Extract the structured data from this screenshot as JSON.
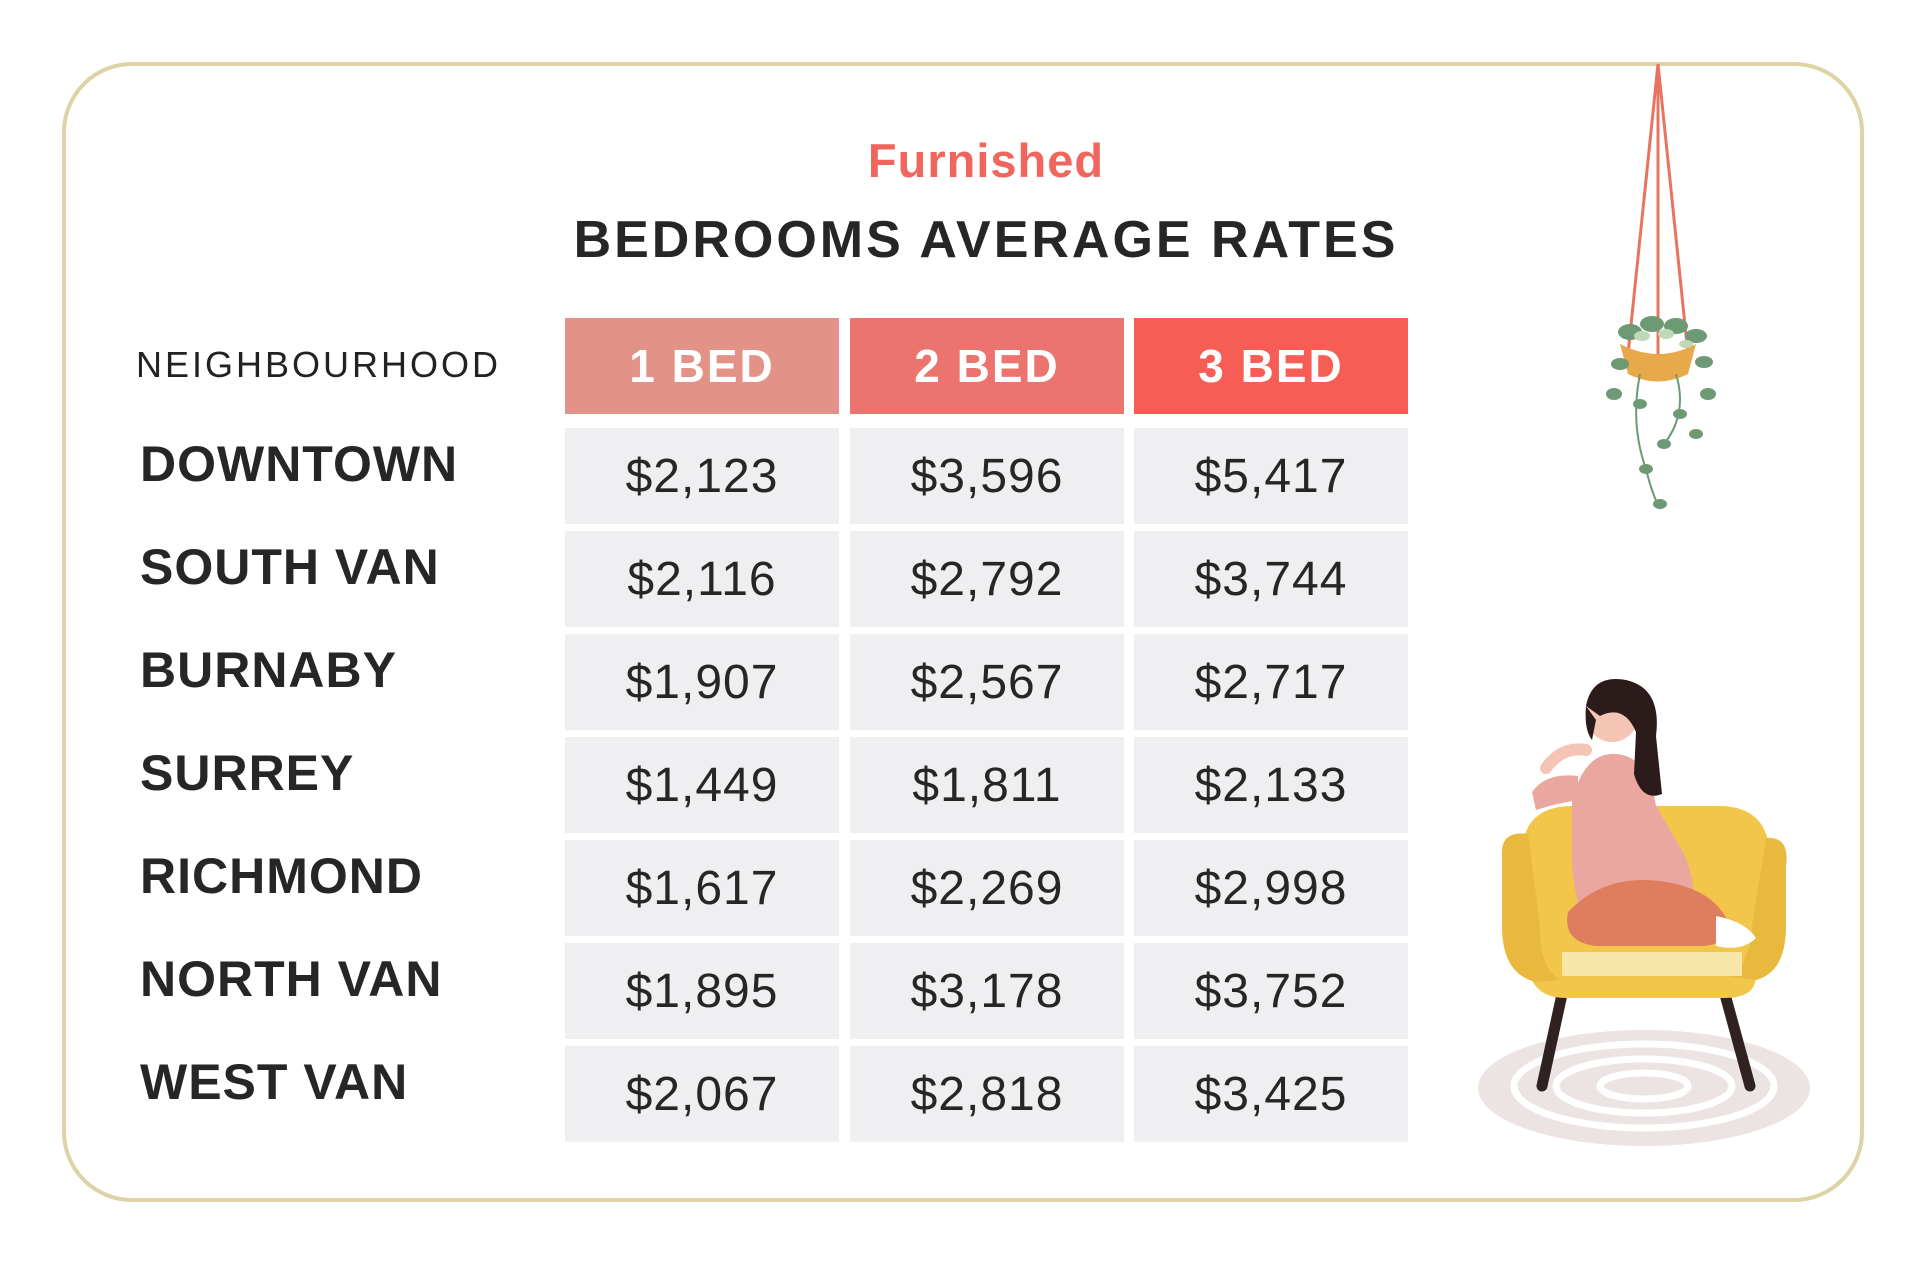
{
  "chart_data": {
    "type": "table",
    "subtitle": "Furnished",
    "title": "BEDROOMS AVERAGE RATES",
    "row_header": "NEIGHBOURHOOD",
    "columns": [
      "1 BED",
      "2 BED",
      "3 BED"
    ],
    "column_colors": [
      "#e39287",
      "#ec746e",
      "#f65e55"
    ],
    "rows": [
      {
        "name": "DOWNTOWN",
        "values": [
          "$2,123",
          "$3,596",
          "$5,417"
        ]
      },
      {
        "name": "SOUTH VAN",
        "values": [
          "$2,116",
          "$2,792",
          "$3,744"
        ]
      },
      {
        "name": "BURNABY",
        "values": [
          "$1,907",
          "$2,567",
          "$2,717"
        ]
      },
      {
        "name": "SURREY",
        "values": [
          "$1,449",
          "$1,811",
          "$2,133"
        ]
      },
      {
        "name": "RICHMOND",
        "values": [
          "$1,617",
          "$2,269",
          "$2,998"
        ]
      },
      {
        "name": "NORTH VAN",
        "values": [
          "$1,895",
          "$3,178",
          "$3,752"
        ]
      },
      {
        "name": "WEST VAN",
        "values": [
          "$2,067",
          "$2,818",
          "$3,425"
        ]
      }
    ]
  },
  "illustrations": {
    "plant": "hanging-plant-icon",
    "woman": "woman-on-armchair-illustration"
  }
}
